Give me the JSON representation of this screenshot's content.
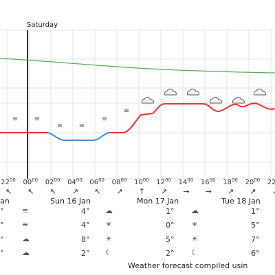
{
  "header": {
    "day": "Saturday"
  },
  "hours": [
    "22",
    "00",
    "02",
    "04",
    "06",
    "08",
    "10",
    "12",
    "14",
    "16",
    "18",
    "20",
    "22"
  ],
  "hour_suffix": "00",
  "days": [
    {
      "name": "Sun 16 Jan",
      "label_prefix": ""
    },
    {
      "name": "Mon 17 Jan",
      "label_prefix": ""
    },
    {
      "name": "Tue 18 Jan",
      "label_prefix": ""
    }
  ],
  "day_partial_left": "an",
  "forecast_table": {
    "col1_temps": [
      "4°",
      "4°",
      "8°",
      "2°"
    ],
    "col2_temps": [
      "1°",
      "0°",
      "5°",
      "2°"
    ],
    "col3_temps": [
      "1°",
      "5°",
      "7°",
      "6°"
    ],
    "left_partial": [
      "°",
      "°",
      "°",
      "°"
    ]
  },
  "footer": {
    "text": "Weather forecast compiled usin"
  },
  "colors": {
    "grid": "#e3e3e3",
    "pressure": "#4caf50",
    "temp_warm": "#ff2b2b",
    "temp_cold": "#3b8eea",
    "divider": "#333333"
  }
}
